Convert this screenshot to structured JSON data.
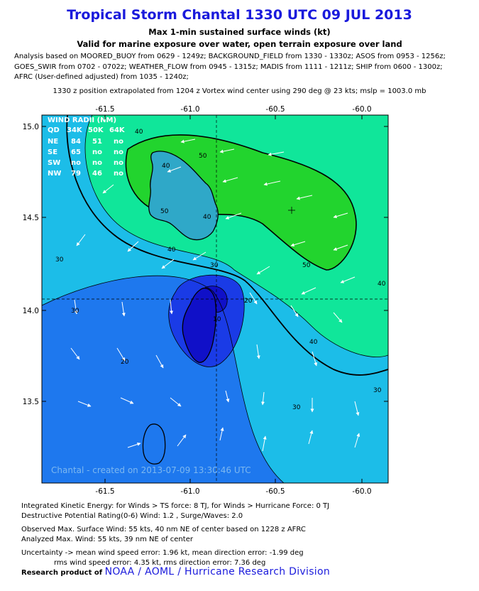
{
  "header": {
    "title": "Tropical Storm Chantal 1330 UTC 09 JUL 2013",
    "subtitle1": "Max 1-min sustained surface winds (kt)",
    "subtitle2": "Valid for marine exposure over water, open terrain exposure over land",
    "analysis_lines": [
      "Analysis based on MOORED_BUOY from 0629 - 1249z; BACKGROUND_FIELD from 1330 - 1330z; ASOS from 0953 - 1256z;",
      "GOES_SWIR from 0702 - 0702z; WEATHER_FLOW from 0945 - 1315z; MADIS from 1111 - 1211z; SHIP from 0600 - 1300z;",
      "AFRC (User-defined adjusted) from 1035 - 1240z;"
    ],
    "position_line": "1330 z position extrapolated from 1204 z Vortex wind center using 290 deg @ 23 kts; mslp = 1003.0 mb"
  },
  "map": {
    "lon_labels": [
      "-61.5",
      "-61.0",
      "-60.5",
      "-60.0"
    ],
    "lat_labels": [
      "15.0",
      "14.5",
      "14.0",
      "13.5"
    ],
    "contour_labels": [
      "40",
      "50",
      "30",
      "20",
      "10"
    ],
    "wind_radii": {
      "title": "WIND RADII (NM)",
      "header": [
        "QD",
        "34K",
        "50K",
        "64K"
      ],
      "rows": [
        [
          "NE",
          "84",
          "51",
          "no"
        ],
        [
          "SE",
          "65",
          "no",
          "no"
        ],
        [
          "SW",
          "no",
          "no",
          "no"
        ],
        [
          "NW",
          "79",
          "46",
          "no"
        ]
      ]
    },
    "created_text": "Chantal - created on 2013-07-09 13:30:46 UTC",
    "colors": {
      "c_lt10": "#1010c8",
      "c_10_20": "#1a3be6",
      "c_20_30": "#1e78ee",
      "c_30_40": "#1cbde8",
      "c_40_50": "#10e69a",
      "c_50plus": "#22d42e",
      "land": "#2fa8c8"
    }
  },
  "footer": {
    "ike_line": "Integrated Kinetic Energy: for Winds > TS force: 8 TJ, for Winds > Hurricane Force: 0 TJ",
    "dp_line": "Destructive Potential Rating(0-6)  Wind: 1.2 , Surge/Waves: 2.0",
    "obs_line": "Observed Max. Surface Wind: 55 kts, 40 nm NE of center based on 1228 z AFRC",
    "analyzed_line": "Analyzed Max. Wind: 55 kts, 39 nm  NE of center",
    "uncert_line1": "Uncertainty -> mean wind speed error: 1.96 kt, mean direction error:  -1.99 deg",
    "uncert_line2": "rms wind speed error: 4.35 kt, rms direction error: 7.36 deg",
    "research_prefix": "Research product of",
    "research_org": "NOAA / AOML / Hurricane Research Division"
  }
}
